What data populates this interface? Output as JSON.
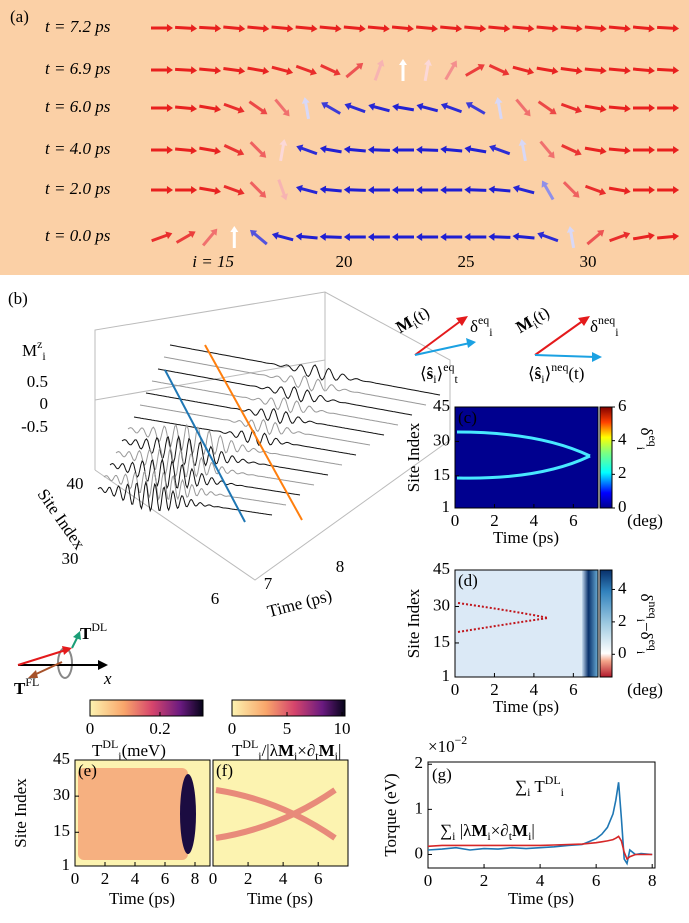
{
  "panel_a": {
    "label": "(a)",
    "rows": [
      {
        "label": "t = 7.2 ps",
        "angles": [
          0,
          -3,
          -3,
          -5,
          -5,
          -5,
          -5,
          -5,
          -5,
          -5,
          -5,
          -5,
          -5,
          -5,
          -5,
          -5,
          -5,
          -5,
          -5,
          -5,
          -5,
          -3
        ]
      },
      {
        "label": "t = 6.9 ps",
        "angles": [
          0,
          -3,
          -5,
          -8,
          -10,
          -15,
          -20,
          -25,
          40,
          70,
          90,
          80,
          60,
          30,
          -25,
          -15,
          -10,
          -8,
          -5,
          -5,
          -5,
          -3
        ]
      },
      {
        "label": "t = 6.0 ps",
        "angles": [
          0,
          -5,
          -10,
          -20,
          -35,
          -50,
          100,
          150,
          160,
          165,
          170,
          165,
          160,
          150,
          100,
          -50,
          -35,
          -20,
          -10,
          -5,
          0,
          0
        ]
      },
      {
        "label": "t = 4.0 ps",
        "angles": [
          0,
          -5,
          -10,
          -25,
          -45,
          80,
          160,
          170,
          175,
          178,
          180,
          178,
          175,
          170,
          160,
          100,
          -50,
          -25,
          -10,
          -5,
          0,
          0
        ]
      },
      {
        "label": "t = 2.0 ps",
        "angles": [
          0,
          0,
          -10,
          -20,
          -45,
          -70,
          165,
          175,
          178,
          180,
          180,
          180,
          180,
          178,
          175,
          165,
          120,
          -45,
          -20,
          -10,
          0,
          0
        ]
      },
      {
        "label": "t = 0.0 ps",
        "angles": [
          20,
          30,
          50,
          90,
          140,
          165,
          175,
          178,
          180,
          180,
          180,
          180,
          180,
          180,
          178,
          175,
          160,
          100,
          40,
          20,
          10,
          5
        ]
      }
    ],
    "site_labels": [
      "i = 15",
      "20",
      "25",
      "30"
    ]
  },
  "panel_b": {
    "label": "(b)",
    "z_label": [
      {
        "text": "M"
      },
      {
        "text": "z",
        "pos": "sup"
      },
      {
        "text": "i",
        "pos": "sub"
      }
    ],
    "z_ticks": [
      0.5,
      0,
      -0.5
    ],
    "y_label": "Site Index",
    "y_ticks": [
      40,
      30
    ],
    "x_label": "Time (ps)",
    "x_ticks": [
      6,
      7,
      8
    ]
  },
  "schematic": {
    "eq": {
      "m": [
        {
          "text": "M",
          "bold": true
        },
        {
          "text": "i",
          "pos": "sub"
        },
        {
          "text": "(t)"
        }
      ],
      "delta": [
        {
          "text": "δ"
        },
        {
          "text": "eq",
          "pos": "sup"
        },
        {
          "text": "i",
          "pos": "sub"
        }
      ],
      "s": [
        {
          "text": "⟨"
        },
        {
          "text": "ŝ",
          "bold": true
        },
        {
          "text": "i",
          "pos": "sub"
        },
        {
          "text": "⟩"
        },
        {
          "text": "eq",
          "pos": "sup"
        },
        {
          "text": "t",
          "pos": "sub"
        }
      ]
    },
    "neq": {
      "m": [
        {
          "text": "M",
          "bold": true
        },
        {
          "text": "i",
          "pos": "sub"
        },
        {
          "text": "(t)"
        }
      ],
      "delta": [
        {
          "text": "δ"
        },
        {
          "text": "neq",
          "pos": "sup"
        },
        {
          "text": "i",
          "pos": "sub"
        }
      ],
      "s": [
        {
          "text": "⟨"
        },
        {
          "text": "ŝ",
          "bold": true
        },
        {
          "text": "i",
          "pos": "sub"
        },
        {
          "text": "⟩"
        },
        {
          "text": "neq",
          "pos": "sup"
        },
        {
          "text": "(t)"
        }
      ]
    }
  },
  "panel_c": {
    "label": "(c)",
    "y_label": "Site Index",
    "x_label": "Time (ps)",
    "xlim": [
      0,
      7.25
    ],
    "xticks": [
      0,
      2,
      4,
      6
    ],
    "ylim": [
      1,
      45
    ],
    "yticks": [
      1,
      15,
      30,
      45
    ],
    "cbar_lim": [
      0,
      6
    ],
    "cbar_ticks": [
      0,
      2,
      4,
      6
    ],
    "cbar_label": [
      {
        "text": "δ"
      },
      {
        "text": "eq",
        "pos": "sup"
      },
      {
        "text": "i",
        "pos": "sub"
      }
    ],
    "cbar_unit": "(deg)"
  },
  "panel_d": {
    "label": "(d)",
    "y_label": "Site Index",
    "x_label": "Time (ps)",
    "xlim": [
      0,
      7.25
    ],
    "xticks": [
      0,
      2,
      4,
      6
    ],
    "ylim": [
      1,
      45
    ],
    "yticks": [
      1,
      15,
      30,
      45
    ],
    "cbar_lim": [
      -1.4,
      5.2
    ],
    "cbar_ticks": [
      0,
      2,
      4
    ],
    "cbar_label": [
      {
        "text": "δ"
      },
      {
        "text": "neq",
        "pos": "sup"
      },
      {
        "text": "i",
        "pos": "sub"
      },
      {
        "text": "−δ"
      },
      {
        "text": "eq",
        "pos": "sup"
      },
      {
        "text": "i",
        "pos": "sub"
      }
    ],
    "cbar_unit": "(deg)"
  },
  "torque_schematic": {
    "dl": [
      {
        "text": "T",
        "bold": true
      },
      {
        "text": "DL",
        "pos": "sup"
      }
    ],
    "fl": [
      {
        "text": "T",
        "bold": true
      },
      {
        "text": "FL",
        "pos": "sup"
      }
    ],
    "axis": "x"
  },
  "cbar_e": {
    "lim": [
      0,
      0.323
    ],
    "ticks": [
      0,
      0.2
    ],
    "label": [
      {
        "text": "T"
      },
      {
        "text": "DL",
        "pos": "sup"
      },
      {
        "text": "i",
        "pos": "sub"
      },
      {
        "text": "(meV)"
      }
    ]
  },
  "cbar_f": {
    "lim": [
      0,
      10.27
    ],
    "ticks": [
      0,
      5,
      10
    ],
    "label": [
      {
        "text": "T"
      },
      {
        "text": "DL",
        "pos": "sup"
      },
      {
        "text": "i",
        "pos": "sub"
      },
      {
        "text": "/|λ"
      },
      {
        "text": "M",
        "bold": true
      },
      {
        "text": "i",
        "pos": "sub"
      },
      {
        "text": "×∂"
      },
      {
        "text": "t",
        "pos": "sub"
      },
      {
        "text": "M",
        "bold": true
      },
      {
        "text": "i",
        "pos": "sub"
      },
      {
        "text": "|"
      }
    ]
  },
  "panel_e": {
    "label": "(e)",
    "y_label": "Site Index",
    "x_label": "Time (ps)",
    "xlim": [
      0,
      9
    ],
    "xticks": [
      0,
      2,
      4,
      6,
      8
    ],
    "ylim": [
      1,
      45
    ],
    "yticks": [
      1,
      15,
      30,
      45
    ]
  },
  "panel_f": {
    "label": "(f)",
    "x_label": "Time (ps)",
    "xlim": [
      0,
      7.7
    ],
    "xticks": [
      0,
      2,
      4,
      6
    ]
  },
  "panel_g": {
    "type": "line",
    "label": "(g)",
    "y_label": "Torque (eV)",
    "x_label": "Time (ps)",
    "multiplier": [
      {
        "text": "×10"
      },
      {
        "text": "−2",
        "pos": "sup"
      }
    ],
    "xlim": [
      0,
      8.1
    ],
    "xticks": [
      0,
      2,
      4,
      6,
      8
    ],
    "ylim": [
      -0.3,
      2.05
    ],
    "yticks": [
      0,
      1,
      2
    ],
    "x": [
      0,
      0.5,
      1,
      1.5,
      2,
      2.5,
      3,
      3.5,
      4,
      4.5,
      5,
      5.5,
      6,
      6.2,
      6.4,
      6.6,
      6.7,
      6.8,
      6.9,
      7.0,
      7.1,
      7.2,
      7.4,
      7.6,
      8
    ],
    "series": [
      {
        "name": [
          {
            "text": "∑"
          },
          {
            "text": "i",
            "pos": "sub"
          },
          {
            "text": " T"
          },
          {
            "text": "DL",
            "pos": "sup"
          },
          {
            "text": "i",
            "pos": "sub"
          }
        ],
        "color": "#1f77b4",
        "values": [
          0.1,
          0.12,
          0.15,
          0.1,
          0.13,
          0.12,
          0.15,
          0.13,
          0.15,
          0.17,
          0.2,
          0.22,
          0.35,
          0.45,
          0.6,
          0.9,
          1.2,
          1.6,
          0.8,
          -0.1,
          -0.2,
          0.1,
          0,
          0.02,
          0
        ]
      },
      {
        "name": [
          {
            "text": "∑"
          },
          {
            "text": "i",
            "pos": "sub"
          },
          {
            "text": " |λ"
          },
          {
            "text": "M",
            "bold": true
          },
          {
            "text": "i",
            "pos": "sub"
          },
          {
            "text": "×∂"
          },
          {
            "text": "t",
            "pos": "sub"
          },
          {
            "text": "M",
            "bold": true
          },
          {
            "text": "i",
            "pos": "sub"
          },
          {
            "text": "|"
          }
        ],
        "color": "#d62728",
        "values": [
          0.18,
          0.2,
          0.2,
          0.2,
          0.2,
          0.2,
          0.2,
          0.2,
          0.2,
          0.21,
          0.22,
          0.23,
          0.26,
          0.28,
          0.3,
          0.33,
          0.36,
          0.4,
          0.3,
          0.05,
          -0.1,
          -0.05,
          0,
          0,
          0
        ]
      }
    ]
  }
}
